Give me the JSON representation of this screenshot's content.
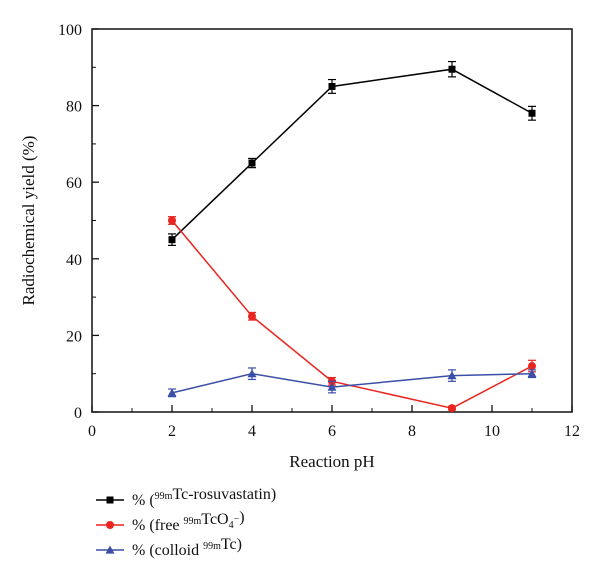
{
  "chart_data": {
    "type": "line",
    "xlabel": "Reaction pH",
    "ylabel": "Radiochemical yield (%)",
    "xlim": [
      0,
      12
    ],
    "ylim": [
      0,
      100
    ],
    "x_ticks": [
      0,
      2,
      4,
      6,
      8,
      10,
      12
    ],
    "y_ticks": [
      0,
      20,
      40,
      60,
      80,
      100
    ],
    "grid": false,
    "legend_position": "bottom",
    "series": [
      {
        "name": "% (99mTc-rosuvastatin)",
        "legend_parts": [
          {
            "text": "% (",
            "sup": false
          },
          {
            "text": "99m",
            "sup": true
          },
          {
            "text": "Tc-rosuvastatin)",
            "sup": false
          }
        ],
        "color": "#000000",
        "marker": "square",
        "x": [
          2,
          4,
          6,
          9,
          11
        ],
        "y": [
          45,
          65,
          85,
          89.5,
          78
        ],
        "err": [
          1.5,
          1.2,
          1.8,
          2,
          1.8
        ]
      },
      {
        "name": "% (free 99mTcO4−)",
        "legend_parts": [
          {
            "text": "% (free ",
            "sup": false
          },
          {
            "text": "99m",
            "sup": true
          },
          {
            "text": "TcO",
            "sup": false
          },
          {
            "text": "4",
            "sub": true
          },
          {
            "text": "−",
            "sup": true
          },
          {
            "text": ")",
            "sup": false
          }
        ],
        "color": "#e8251f",
        "marker": "circle",
        "x": [
          2,
          4,
          6,
          9,
          11
        ],
        "y": [
          50,
          25,
          8,
          1,
          12
        ],
        "err": [
          1,
          1,
          1,
          0.5,
          1.5
        ]
      },
      {
        "name": "% (colloid 99mTc)",
        "legend_parts": [
          {
            "text": "% (colloid ",
            "sup": false
          },
          {
            "text": "99m",
            "sup": true
          },
          {
            "text": "Tc)",
            "sup": false
          }
        ],
        "color": "#3b4fa8",
        "marker": "triangle",
        "x": [
          2,
          4,
          6,
          9,
          11
        ],
        "y": [
          5,
          10,
          6.5,
          9.5,
          10
        ],
        "err": [
          1,
          1.5,
          1.5,
          1.5,
          1
        ]
      }
    ]
  }
}
